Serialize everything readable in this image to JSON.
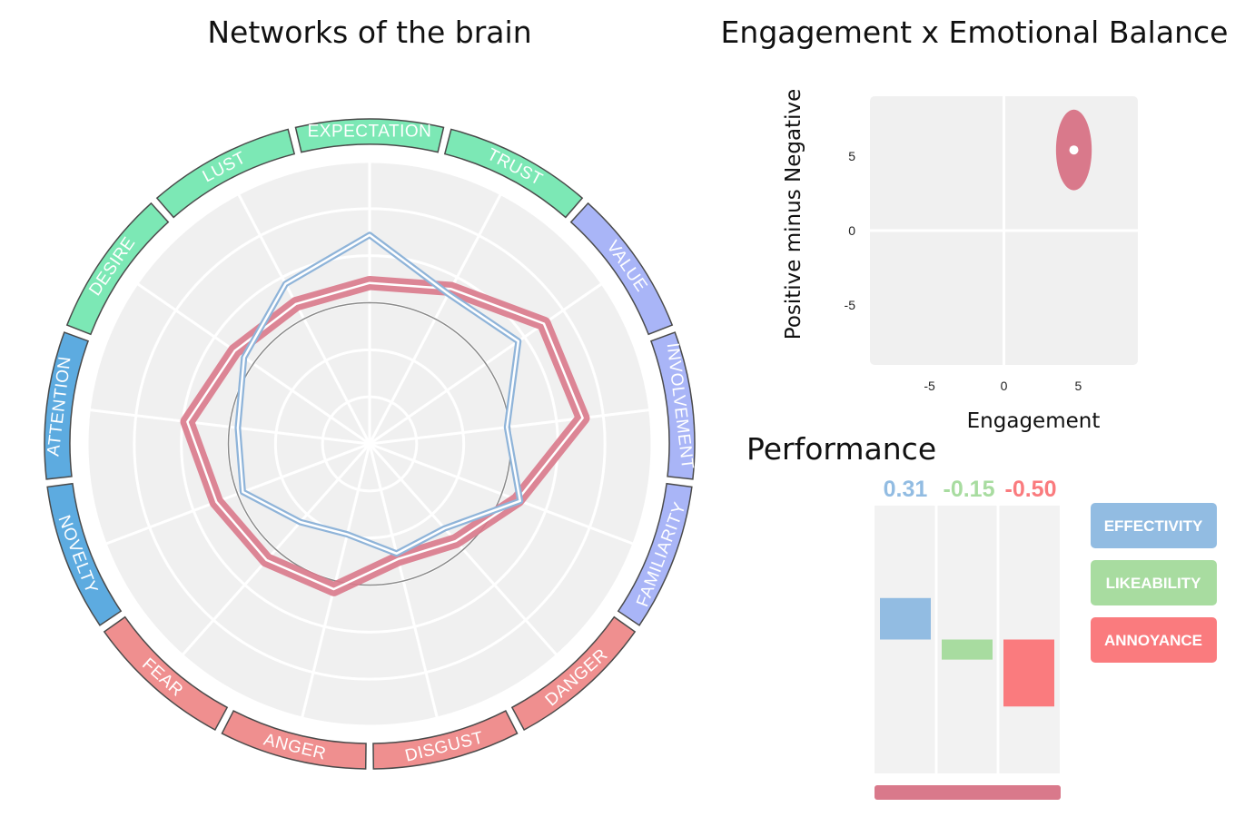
{
  "chart_data": [
    {
      "type": "radar",
      "title": "Networks of the brain",
      "categories": [
        "EXPECTATION",
        "TRUST",
        "VALUE",
        "INVOLVEMENT",
        "FAMILIARITY",
        "DANGER",
        "DISGUST",
        "ANGER",
        "FEAR",
        "NOVELTY",
        "ATTENTION",
        "DESIRE",
        "LUST"
      ],
      "category_colors": [
        "#7ce8b5",
        "#7ce8b5",
        "#a9b5f7",
        "#a9b5f7",
        "#a9b5f7",
        "#ef8f8f",
        "#ef8f8f",
        "#ef8f8f",
        "#ef8f8f",
        "#5dabe0",
        "#5dabe0",
        "#7ce8b5",
        "#7ce8b5"
      ],
      "radial_range": [
        0,
        1
      ],
      "radial_rings": 6,
      "reference_ring": 0.5,
      "series": [
        {
          "color": "#d9798b",
          "values": [
            0.57,
            0.62,
            0.75,
            0.76,
            0.56,
            0.46,
            0.42,
            0.53,
            0.55,
            0.58,
            0.65,
            0.58,
            0.56
          ],
          "band": 0.05
        },
        {
          "color": "#8fb4d9",
          "values": [
            0.74,
            0.6,
            0.64,
            0.49,
            0.57,
            0.4,
            0.4,
            0.33,
            0.37,
            0.48,
            0.47,
            0.54,
            0.64
          ]
        }
      ]
    },
    {
      "type": "scatter",
      "title": "Engagement x Emotional Balance",
      "xlabel": "Engagement",
      "ylabel": "Positive minus Negative",
      "xlim": [
        -9,
        9
      ],
      "ylim": [
        -9,
        9
      ],
      "xticks": [
        "-5",
        "0",
        "5"
      ],
      "yticks": [
        "5",
        "0",
        "-5"
      ],
      "point": {
        "x": 4.7,
        "y": 5.4,
        "sx": 1.2,
        "sy": 2.7
      },
      "color": "#d9798b"
    },
    {
      "type": "bar",
      "title": "Performance",
      "categories": [
        "EFFECTIVITY",
        "LIKEABILITY",
        "ANNOYANCE"
      ],
      "values": [
        0.31,
        -0.15,
        -0.5
      ],
      "value_labels": [
        "0.31",
        "-0.15",
        "-0.50"
      ],
      "colors": [
        "#92bce2",
        "#a8dca0",
        "#fa7b7e"
      ],
      "ylim": [
        -1,
        1
      ]
    }
  ]
}
